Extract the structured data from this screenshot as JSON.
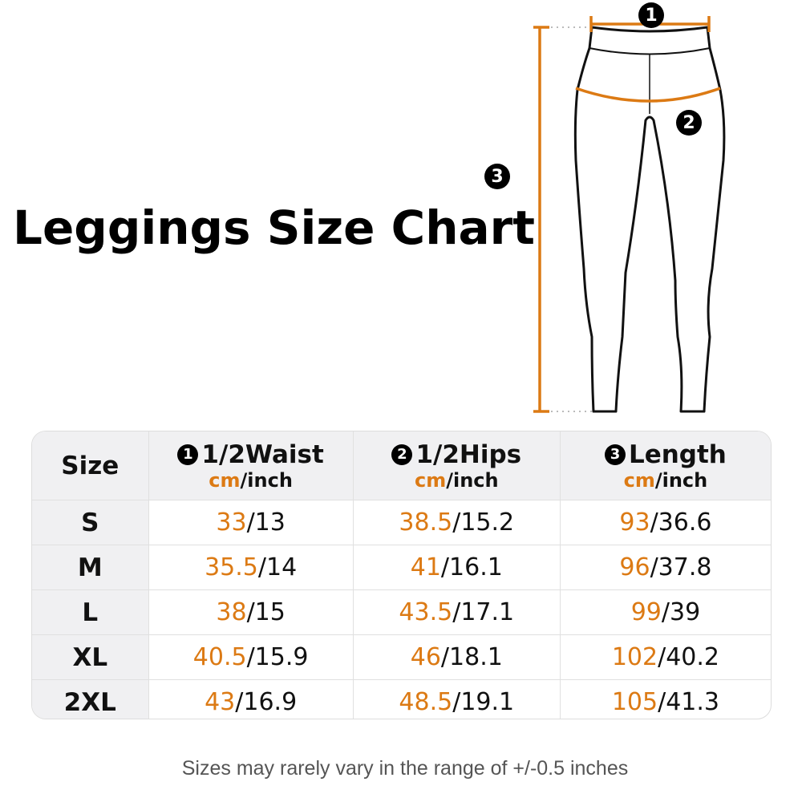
{
  "title": "Leggings Size Chart",
  "accent_color": "#dc7a14",
  "markers": [
    "1",
    "2",
    "3"
  ],
  "table": {
    "size_header": "Size",
    "columns": [
      {
        "badge": "1",
        "name": "1/2Waist",
        "unit_cm": "cm",
        "unit_inch": "/inch"
      },
      {
        "badge": "2",
        "name": "1/2Hips",
        "unit_cm": "cm",
        "unit_inch": "/inch"
      },
      {
        "badge": "3",
        "name": "Length",
        "unit_cm": "cm",
        "unit_inch": "/inch"
      }
    ],
    "rows": [
      {
        "size": "S",
        "values": [
          [
            "33",
            "/13"
          ],
          [
            "38.5",
            "/15.2"
          ],
          [
            "93",
            "/36.6"
          ]
        ]
      },
      {
        "size": "M",
        "values": [
          [
            "35.5",
            "/14"
          ],
          [
            "41",
            "/16.1"
          ],
          [
            "96",
            "/37.8"
          ]
        ]
      },
      {
        "size": "L",
        "values": [
          [
            "38",
            "/15"
          ],
          [
            "43.5",
            "/17.1"
          ],
          [
            "99",
            "/39"
          ]
        ]
      },
      {
        "size": "XL",
        "values": [
          [
            "40.5",
            "/15.9"
          ],
          [
            "46",
            "/18.1"
          ],
          [
            "102",
            "/40.2"
          ]
        ]
      },
      {
        "size": "2XL",
        "values": [
          [
            "43",
            "/16.9"
          ],
          [
            "48.5",
            "/19.1"
          ],
          [
            "105",
            "/41.3"
          ]
        ]
      }
    ]
  },
  "note": "Sizes may rarely vary in the range of +/-0.5 inches"
}
